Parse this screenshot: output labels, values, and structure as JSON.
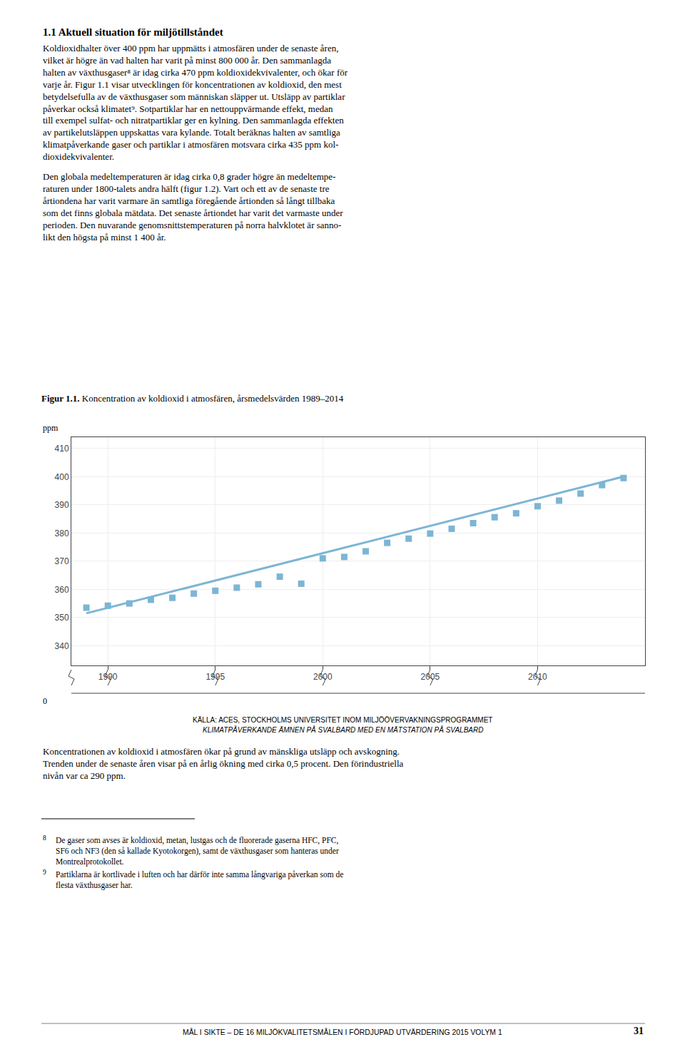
{
  "chart_data": {
    "type": "scatter",
    "title": "Figur 1.1.",
    "subtitle": "Koncentration av koldioxid i atmosfären, årsmedelsvärden 1989–2014",
    "ylabel": "ppm",
    "xlim": [
      1988.3,
      2015.0
    ],
    "xticks": [
      1990,
      1995,
      2000,
      2005,
      2010
    ],
    "ylim": [
      333,
      414
    ],
    "yticks": [
      340,
      350,
      360,
      370,
      380,
      390,
      400,
      410
    ],
    "grid": true,
    "series": [
      {
        "type": "line",
        "line_style": "solid",
        "color": "#7cb5d5",
        "x": [
          1989,
          2014
        ],
        "values": [
          351.5,
          400.0
        ]
      },
      {
        "type": "scatter",
        "marker": "square",
        "color": "#7cb5d5",
        "x": [
          1989,
          1990,
          1991,
          1992,
          1993,
          1994,
          1995,
          1996,
          1997,
          1998,
          1999,
          2000,
          2001,
          2002,
          2003,
          2004,
          2005,
          2006,
          2007,
          2008,
          2009,
          2010,
          2011,
          2012,
          2013,
          2014
        ],
        "values": [
          353.5,
          354.2,
          355.0,
          356.3,
          357.0,
          358.5,
          359.5,
          360.6,
          361.8,
          364.5,
          362.0,
          371.0,
          371.5,
          373.5,
          376.5,
          378.0,
          379.8,
          381.5,
          383.5,
          385.6,
          387.0,
          389.5,
          391.5,
          394.0,
          397.0,
          399.5
        ]
      }
    ],
    "annotations": [
      "1.1 Aktuell situation för miljötillståndet",
      "Koldioxidhalter över 400 ppm har uppmätts i atmosfären under de senaste åren,\nvilket är högre än vad halten har varit på minst 800 000 år. Den sammanlagda\nhalten av växthusgaser⁸ är idag cirka 470 ppm koldioxidekvivalenter, och ökar för\nvarje år. Figur 1.1 visar utvecklingen för koncentrationen av koldioxid, den mest\nbetydelsefulla av de växthusgaser som människan släpper ut. Utsläpp av partiklar\npåverkar också klimatet⁹. Sotpartiklar har en nettouppvärmande effekt, medan\ntill exempel sulfat- och nitratpartiklar ger en kylning. Den sammanlagda effekten\nav partikelutsläppen uppskattas vara kylande. Totalt beräknas halten av samtliga\nklimatpåverkande gaser och partiklar i atmosfären motsvara cirka 435 ppm kol-\ndioxidekvivalenter.",
      "Den globala medeltemperaturen är idag cirka 0,8 grader högre än medeltempe-\nraturen under 1800-talets andra hälft (figur 1.2). Vart och ett av de senaste tre\nårtiondena har varit varmare än samtliga föregående årtionden så långt tillbaka\nsom det finns globala mätdata. Det senaste årtiondet har varit det varmaste under\nperioden. Den nuvarande genomsnittstemperaturen på norra halvklotet är sanno-\nlikt den högsta på minst 1 400 år.",
      "0",
      "KÄLLA: ACES, STOCKHOLMS UNIVERSITET INOM MILJÖÖVERVAKNINGSPROGRAMMET",
      "KLIMATPÅVERKANDE ÄMNEN PÅ SVALBARD MED EN MÄTSTATION PÅ SVALBARD",
      "Koncentrationen av koldioxid i atmosfären ökar på grund av mänskliga utsläpp och avskogning.\nTrenden under de senaste åren visar på en årlig ökning med cirka 0,5 procent. Den förindustriella\nnivån var ca 290 ppm.",
      "8",
      "De gaser som avses är koldioxid, metan, lustgas och de fluorerade gaserna HFC, PFC,\nSF6 och NF3 (den så kallade Kyotokorgen), samt de växthusgaser som hanteras under\nMontrealprotokollet.",
      "9",
      "Partiklarna är kortlivade i luften och har därför inte samma långvariga påverkan som de\nflesta växthusgaser har.",
      "MÅL I SIKTE – DE 16 MILJÖKVALITETSMÅLEN I FÖRDJUPAD UTVÄRDERING 2015 VOLYM 1",
      "31"
    ]
  }
}
